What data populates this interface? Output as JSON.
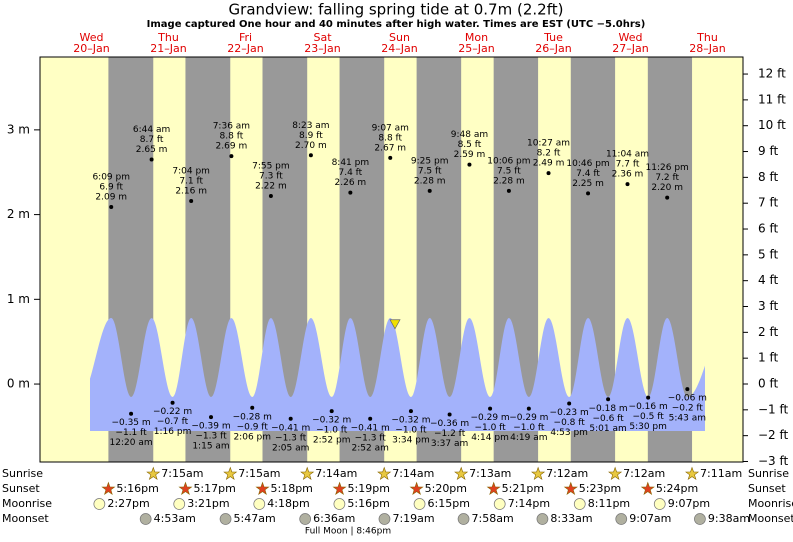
{
  "chart_data": {
    "type": "tide",
    "title": "Grandview: falling  spring tide at 0.7m (2.2ft)",
    "subtitle": "Image captured One hour and 40 minutes after high water. Times are EST (UTC −5.0hrs)",
    "days": [
      {
        "weekday": "Wed",
        "date": "20–Jan"
      },
      {
        "weekday": "Thu",
        "date": "21–Jan"
      },
      {
        "weekday": "Fri",
        "date": "22–Jan"
      },
      {
        "weekday": "Sat",
        "date": "23–Jan"
      },
      {
        "weekday": "Sun",
        "date": "24–Jan"
      },
      {
        "weekday": "Mon",
        "date": "25–Jan"
      },
      {
        "weekday": "Tue",
        "date": "26–Jan"
      },
      {
        "weekday": "Wed",
        "date": "27–Jan"
      },
      {
        "weekday": "Thu",
        "date": "28–Jan"
      }
    ],
    "ylim": [
      -0.92,
      3.86
    ],
    "yticks": [
      {
        "value": 0,
        "label": "0 m"
      },
      {
        "value": 1,
        "label": "1 m"
      },
      {
        "value": 2,
        "label": "2 m"
      },
      {
        "value": 3,
        "label": "3 m"
      }
    ],
    "y2lim": [
      -3.02,
      12.66
    ],
    "y2ticks": [
      {
        "value": -3,
        "label": "−3 ft"
      },
      {
        "value": -2,
        "label": "−2 ft"
      },
      {
        "value": -1,
        "label": "−1 ft"
      },
      {
        "value": 0,
        "label": "0 ft"
      },
      {
        "value": 1,
        "label": "1 ft"
      },
      {
        "value": 2,
        "label": "2 ft"
      },
      {
        "value": 3,
        "label": "3 ft"
      },
      {
        "value": 4,
        "label": "4 ft"
      },
      {
        "value": 5,
        "label": "5 ft"
      },
      {
        "value": 6,
        "label": "6 ft"
      },
      {
        "value": 7,
        "label": "7 ft"
      },
      {
        "value": 8,
        "label": "8 ft"
      },
      {
        "value": 9,
        "label": "9 ft"
      },
      {
        "value": 10,
        "label": "10 ft"
      },
      {
        "value": 11,
        "label": "11 ft"
      },
      {
        "value": 12,
        "label": "12 ft"
      }
    ],
    "current_level": 0.7,
    "highs": {
      "times": [
        "6:09 pm",
        "6:44 am",
        "7:04 pm",
        "7:36 am",
        "7:55 pm",
        "8:23 am",
        "8:41 pm",
        "9:07 am",
        "9:25 pm",
        "9:48 am",
        "10:06 pm",
        "10:27 am",
        "10:46 pm",
        "11:04 am",
        "11:26 pm"
      ],
      "values": [
        2.09,
        2.65,
        2.16,
        2.69,
        2.22,
        2.7,
        2.26,
        2.67,
        2.28,
        2.59,
        2.28,
        2.49,
        2.25,
        2.36,
        2.2
      ],
      "value_labels": [
        "2.09 m",
        "2.65 m",
        "2.16 m",
        "2.69 m",
        "2.22 m",
        "2.70 m",
        "2.26 m",
        "2.67 m",
        "2.28 m",
        "2.59 m",
        "2.28 m",
        "2.49 m",
        "2.25 m",
        "2.36 m",
        "2.20 m"
      ],
      "values_ft": [
        6.9,
        8.7,
        7.1,
        8.8,
        7.3,
        8.9,
        7.4,
        8.8,
        7.5,
        8.5,
        7.5,
        8.2,
        7.4,
        7.7,
        7.2
      ],
      "value_labels_ft": [
        "6.9 ft",
        "8.7 ft",
        "7.1 ft",
        "8.8 ft",
        "7.3 ft",
        "8.9 ft",
        "7.4 ft",
        "8.8 ft",
        "7.5 ft",
        "8.5 ft",
        "7.5 ft",
        "8.2 ft",
        "7.4 ft",
        "7.7 ft",
        "7.2 ft"
      ]
    },
    "lows": {
      "times": [
        "12:20 am",
        "1:16 pm",
        "1:15 am",
        "2:06 pm",
        "2:05 am",
        "2:52 pm",
        "2:52 am",
        "3:34 pm",
        "3:37 am",
        "4:14 pm",
        "4:19 am",
        "4:53 pm",
        "5:01 am",
        "5:30 pm",
        "5:43 am"
      ],
      "values": [
        -0.35,
        -0.22,
        -0.39,
        -0.28,
        -0.41,
        -0.32,
        -0.41,
        -0.32,
        -0.36,
        -0.29,
        -0.29,
        -0.23,
        -0.18,
        -0.16,
        -0.06
      ],
      "value_labels": [
        "−0.35 m",
        "−0.22 m",
        "−0.39 m",
        "−0.28 m",
        "−0.41 m",
        "−0.32 m",
        "−0.41 m",
        "−0.32 m",
        "−0.36 m",
        "−0.29 m",
        "−0.29 m",
        "−0.23 m",
        "−0.18 m",
        "−0.16 m",
        "−0.06 m"
      ],
      "values_ft": [
        -1.1,
        -0.7,
        -1.3,
        -0.9,
        -1.3,
        -1.0,
        -1.3,
        -1.0,
        -1.2,
        -1.0,
        -1.0,
        -0.8,
        -0.6,
        -0.5,
        -0.2
      ],
      "value_labels_ft": [
        "−1.1 ft",
        "−0.7 ft",
        "−1.3 ft",
        "−0.9 ft",
        "−1.3 ft",
        "−1.0 ft",
        "−1.3 ft",
        "−1.0 ft",
        "−1.2 ft",
        "−1.0 ft",
        "−1.0 ft",
        "−0.8 ft",
        "−0.6 ft",
        "−0.5 ft",
        "−0.2 ft"
      ]
    },
    "rows": [
      {
        "label": "Sunrise",
        "times": [
          "7:15am",
          "7:15am",
          "7:14am",
          "7:14am",
          "7:13am",
          "7:12am",
          "7:12am",
          "7:11am"
        ]
      },
      {
        "label": "Sunset",
        "times": [
          "5:16pm",
          "5:17pm",
          "5:18pm",
          "5:19pm",
          "5:20pm",
          "5:21pm",
          "5:23pm",
          "5:24pm"
        ]
      },
      {
        "label": "Moonrise",
        "times": [
          "2:27pm",
          "3:21pm",
          "4:18pm",
          "5:16pm",
          "6:15pm",
          "7:14pm",
          "8:11pm",
          "9:07pm"
        ]
      },
      {
        "label": "Moonset",
        "times": [
          "4:53am",
          "5:47am",
          "6:36am",
          "7:19am",
          "7:58am",
          "8:33am",
          "9:07am",
          "9:38am"
        ]
      }
    ],
    "moon_phase": "Full Moon | 8:46pm"
  }
}
